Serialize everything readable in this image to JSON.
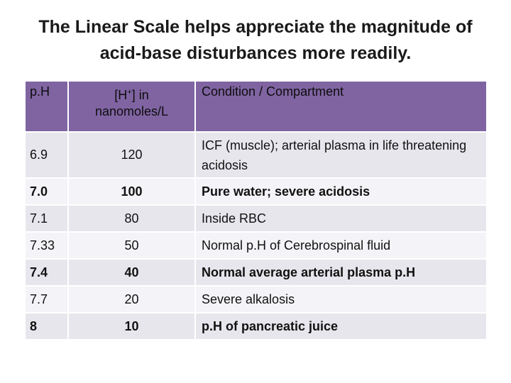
{
  "title": {
    "line1": "The Linear Scale helps appreciate the magnitude of",
    "line2": "acid-base disturbances more readily."
  },
  "table": {
    "headers": {
      "ph": "p.H",
      "h_pre": "[H",
      "h_sup": "+",
      "h_post": "] in",
      "h_line2": "nanomoles/L",
      "condition": "Condition / Compartment"
    },
    "rows": [
      {
        "ph": "6.9",
        "h": "120",
        "condition": "ICF (muscle); arterial plasma in life threatening acidosis",
        "bold": false
      },
      {
        "ph": "7.0",
        "h": "100",
        "condition": "Pure water; severe acidosis",
        "bold": true
      },
      {
        "ph": "7.1",
        "h": "80",
        "condition": "Inside RBC",
        "bold": false
      },
      {
        "ph": "7.33",
        "h": "50",
        "condition": "Normal p.H of Cerebrospinal fluid",
        "bold": false
      },
      {
        "ph": "7.4",
        "h": "40",
        "condition": "Normal average arterial plasma p.H",
        "bold": true
      },
      {
        "ph": "7.7",
        "h": "20",
        "condition": "Severe alkalosis",
        "bold": false
      },
      {
        "ph": "8",
        "h": "10",
        "condition": "p.H of pancreatic juice",
        "bold": true
      }
    ]
  },
  "colors": {
    "header_bg": "#8064a2",
    "row_odd": "#e8e6ed",
    "row_even": "#f4f3f7"
  }
}
